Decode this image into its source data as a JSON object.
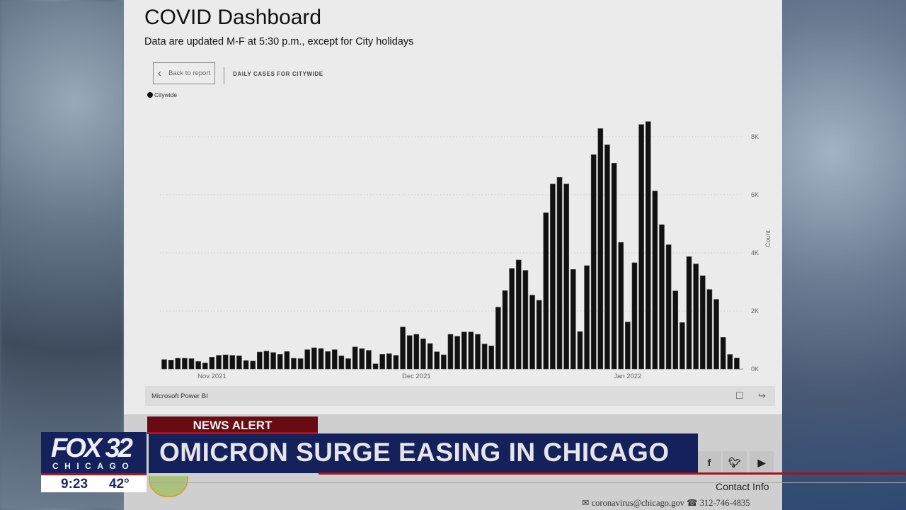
{
  "dashboard": {
    "title": "COVID Dashboard",
    "subtitle": "Data are updated M-F at 5:30 p.m., except for City holidays",
    "back_button": "Back to report",
    "visual_title": "DAILY CASES FOR CITYWIDE",
    "footer_brand": "Microsoft Power BI",
    "footer_icons": [
      "open-in-new-icon",
      "share-icon"
    ]
  },
  "chart_data": {
    "type": "bar",
    "title": "DAILY CASES FOR CITYWIDE",
    "legend": {
      "entries": [
        "Citywide"
      ],
      "placement": "top-left"
    },
    "ylabel": "Count",
    "ylim": [
      0,
      8500
    ],
    "yticks": [
      0,
      2000,
      4000,
      6000,
      8000
    ],
    "ytick_labels": [
      "0K",
      "2K",
      "4K",
      "6K",
      "8K"
    ],
    "xtick_labels": [
      {
        "label": "Nov 2021",
        "date": "2021-11-01"
      },
      {
        "label": "Dec 2021",
        "date": "2021-12-01"
      },
      {
        "label": "Jan 2022",
        "date": "2022-01-01"
      }
    ],
    "grid": true,
    "x_start": "2021-10-25",
    "x_end": "2022-01-17",
    "color": "#111111",
    "series": [
      {
        "name": "Citywide",
        "values": [
          325,
          309,
          374,
          374,
          358,
          260,
          211,
          407,
          472,
          488,
          472,
          455,
          293,
          276,
          585,
          618,
          569,
          504,
          602,
          374,
          358,
          667,
          732,
          707,
          602,
          667,
          455,
          358,
          760,
          703,
          642,
          179,
          504,
          528,
          472,
          1447,
          1154,
          1195,
          1041,
          878,
          593,
          488,
          1195,
          1130,
          1276,
          1276,
          1195,
          862,
          797,
          2130,
          2699,
          3463,
          3756,
          3398,
          2545,
          2366,
          5380,
          6370,
          6600,
          6370,
          3430,
          1290,
          3560,
          7380,
          8280,
          7720,
          7090,
          4360,
          1620,
          3660,
          8420,
          8520,
          6130,
          4970,
          4280,
          2690,
          1600,
          3870,
          3620,
          3210,
          2740,
          2400,
          1090,
          500,
          380
        ]
      }
    ]
  },
  "page_footer": {
    "social": [
      "facebook-icon",
      "twitter-icon",
      "youtube-icon"
    ],
    "contact_title": "Contact Info",
    "email": "coronavirus@chicago.gov",
    "phone": "312-746-4835"
  },
  "broadcast": {
    "alert_label": "NEWS ALERT",
    "headline": "OMICRON SURGE EASING IN CHICAGO",
    "station_name": "FOX 32",
    "station_city": "CHICAGO",
    "time": "9:23",
    "temperature": "42°",
    "colors": {
      "navy": "#14215a",
      "red": "#b0121d",
      "alert": "#690b12"
    }
  }
}
